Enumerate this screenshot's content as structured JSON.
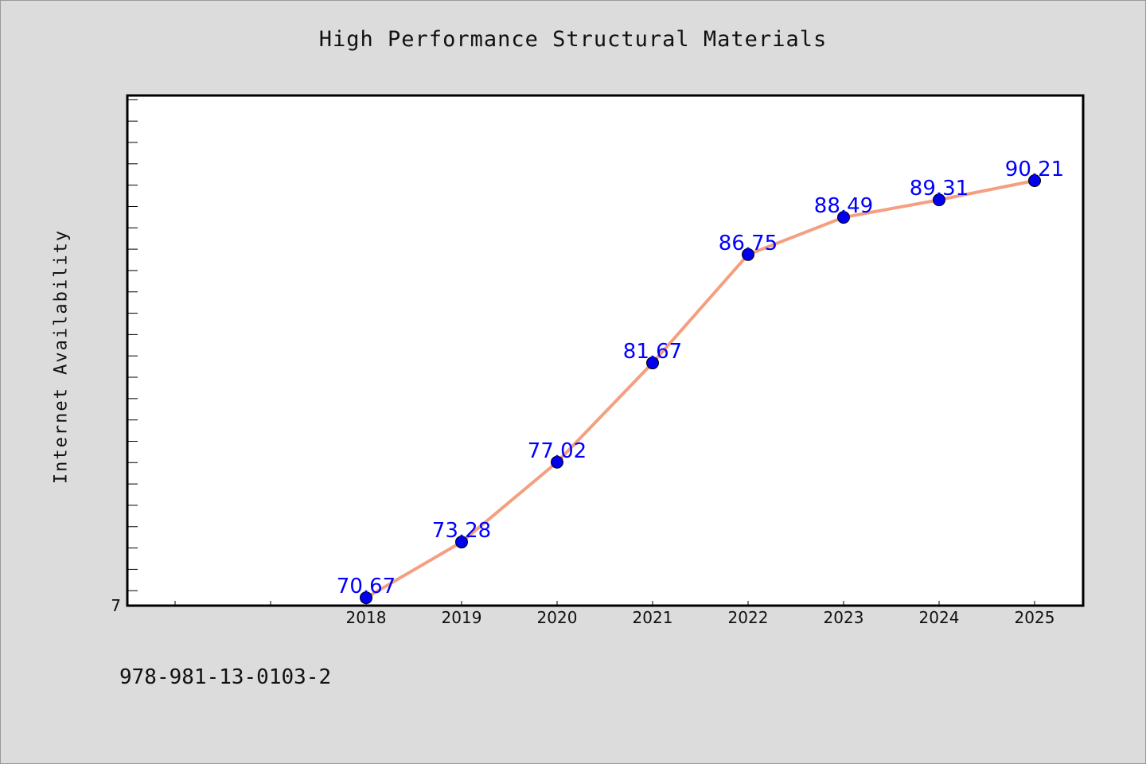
{
  "chart_data": {
    "type": "line",
    "title": "High Performance Structural Materials",
    "xlabel": "",
    "ylabel": "Internet Availability",
    "categories": [
      "2018",
      "2019",
      "2020",
      "2021",
      "2022",
      "2023",
      "2024",
      "2025"
    ],
    "series": [
      {
        "values": [
          70.67,
          73.28,
          77.02,
          81.67,
          86.75,
          88.49,
          89.31,
          90.21
        ],
        "data_labels": [
          "70.67",
          "73.28",
          "77.02",
          "81.67",
          "86.75",
          "88.49",
          "89.31",
          "90.21"
        ],
        "line_color": "#f4a080",
        "marker_color": "#0000ee"
      }
    ],
    "x_axis_leading_empty_slots": 2,
    "y_tick_labels": [
      "7"
    ],
    "ylim": [
      70.3,
      94.2
    ],
    "y_minor_tick_step": 1,
    "grid": false,
    "legend": "none",
    "label_color": "#0000ff",
    "plot_background": "#ffffff",
    "figure_background": "#dcdcdc"
  },
  "footer_note": "978-981-13-0103-2"
}
